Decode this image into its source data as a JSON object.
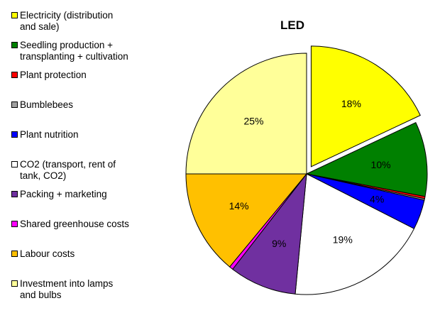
{
  "chart_data": {
    "type": "pie",
    "title": "LED",
    "legend_position": "left",
    "slices": [
      {
        "label": "Electricity (distribution\nand sale)",
        "value": 18,
        "display": "18%",
        "color": "#FFFF00",
        "exploded": true
      },
      {
        "label": "Seedling production +\ntransplanting + cultivation",
        "value": 10,
        "display": "10%",
        "color": "#008000"
      },
      {
        "label": "Plant protection",
        "value": 0.3,
        "display": "",
        "color": "#FF0000"
      },
      {
        "label": "Bumblebees",
        "value": 0.2,
        "display": "",
        "color": "#A0A0A0"
      },
      {
        "label": "Plant nutrition",
        "value": 4,
        "display": "4%",
        "color": "#0000FF"
      },
      {
        "label": "CO2 (transport, rent of\ntank, CO2)",
        "value": 19,
        "display": "19%",
        "color": "#FFFFFF"
      },
      {
        "label": "Packing + marketing",
        "value": 9,
        "display": "9%",
        "color": "#7030A0"
      },
      {
        "label": "Shared greenhouse costs",
        "value": 0.5,
        "display": "",
        "color": "#FF00FF"
      },
      {
        "label": "Labour costs",
        "value": 14,
        "display": "14%",
        "color": "#FFC000"
      },
      {
        "label": "Investment into lamps\nand bulbs",
        "value": 25,
        "display": "25%",
        "color": "#FFFF99"
      }
    ]
  }
}
